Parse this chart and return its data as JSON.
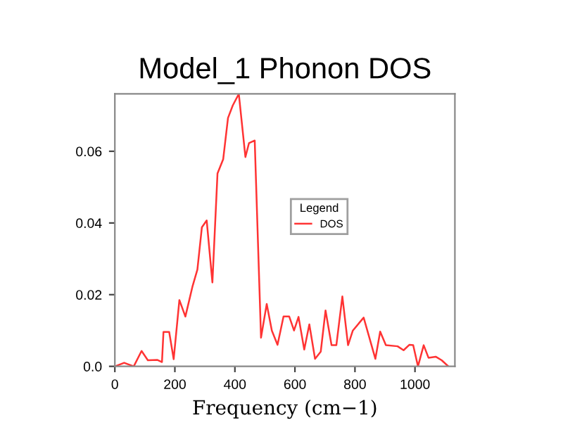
{
  "chart_data": {
    "type": "line",
    "title": "Model_1 Phonon DOS",
    "xlabel": "Frequency (cm−1)",
    "legend_title": "Legend",
    "legend": "right",
    "grid": false,
    "xlim": [
      0,
      1133
    ],
    "ylim": [
      0,
      0.076
    ],
    "xticks": [
      0,
      200,
      400,
      600,
      800,
      1000
    ],
    "yticks": [
      {
        "value": 0,
        "label": "0.0"
      },
      0.02,
      0.04,
      0.06
    ],
    "x": [
      0,
      31,
      63,
      89,
      110,
      141,
      157,
      162,
      181,
      196,
      215,
      235,
      259,
      275,
      290,
      306,
      325,
      342,
      361,
      377,
      393,
      413,
      435,
      447,
      466,
      487,
      506,
      523,
      542,
      562,
      581,
      597,
      612,
      631,
      648,
      667,
      686,
      702,
      722,
      738,
      758,
      777,
      793,
      829,
      868,
      884,
      903,
      942,
      962,
      981,
      994,
      1010,
      1029,
      1045,
      1069,
      1089,
      1111
    ],
    "series": [
      {
        "name": "DOS",
        "color": "#ff3333",
        "values": [
          0,
          0.001,
          0,
          0.0043,
          0.0017,
          0.0018,
          0.0012,
          0.0096,
          0.0096,
          0.002,
          0.0185,
          0.0139,
          0.0224,
          0.027,
          0.0388,
          0.0407,
          0.0234,
          0.0538,
          0.0578,
          0.0693,
          0.0728,
          0.076,
          0.0584,
          0.0623,
          0.063,
          0.008,
          0.0174,
          0.01,
          0.006,
          0.0139,
          0.0139,
          0.01,
          0.0138,
          0.0047,
          0.0117,
          0.0021,
          0.0041,
          0.0156,
          0.0059,
          0.0059,
          0.0195,
          0.0059,
          0.01,
          0.0136,
          0.0021,
          0.0097,
          0.0059,
          0.0056,
          0.0045,
          0.006,
          0.0059,
          0,
          0.0059,
          0.0024,
          0.0027,
          0.0017,
          0
        ]
      }
    ]
  }
}
